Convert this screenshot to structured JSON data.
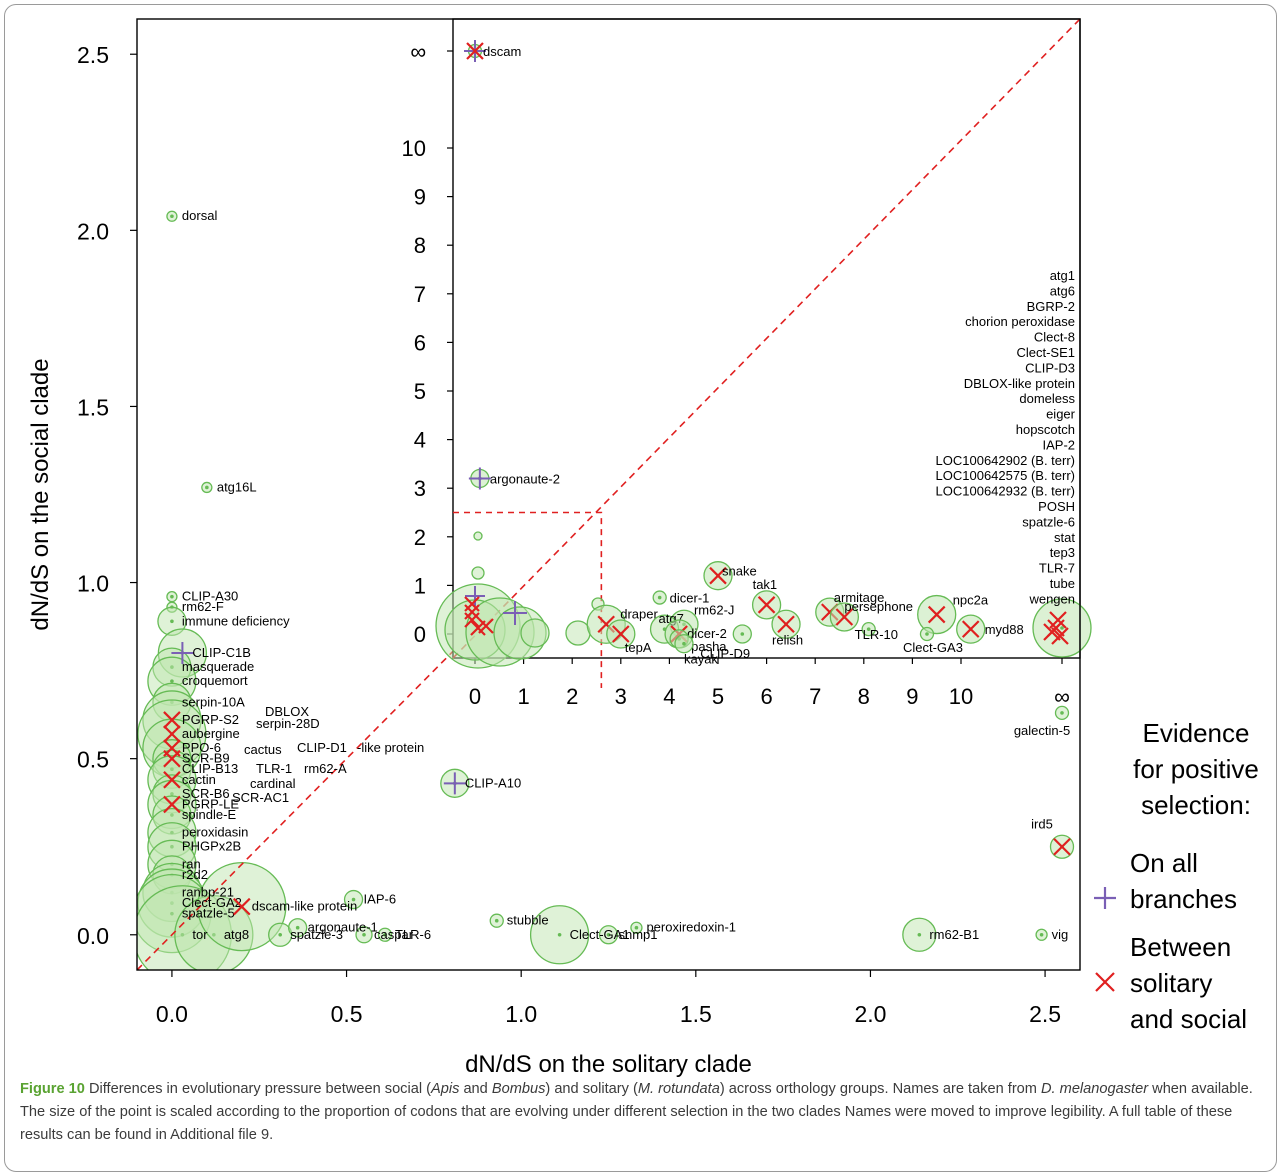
{
  "chart_data": {
    "type": "scatter",
    "xlabel": "dN/dS on the solitary clade",
    "ylabel": "dN/dS on the social clade",
    "xlim": [
      -0.1,
      2.6
    ],
    "ylim": [
      -0.1,
      2.6
    ],
    "xticks": [
      "0.0",
      "0.5",
      "1.0",
      "1.5",
      "2.0",
      "2.5"
    ],
    "yticks": [
      "0.0",
      "0.5",
      "1.0",
      "1.5",
      "2.0",
      "2.5"
    ],
    "diagonal": "y = x",
    "grid": false,
    "legend": {
      "title": [
        "Evidence",
        "for positive",
        "selection:"
      ],
      "entries": [
        {
          "label": [
            "On all",
            "branches"
          ],
          "marker": "+",
          "color": "#7a5fb5"
        },
        {
          "label": [
            "Between",
            "solitary",
            "and social"
          ],
          "marker": "x",
          "color": "#e02020"
        }
      ],
      "position": "right"
    },
    "colors": {
      "point": "#66bb55",
      "fill": "#bfe6b0",
      "plus": "#7a5fb5",
      "cross": "#e02020",
      "frame": "#000000"
    },
    "points": [
      {
        "x": 0.0,
        "y": 2.04,
        "label": "dorsal",
        "size": 0.02
      },
      {
        "x": 0.1,
        "y": 1.27,
        "label": "atg16L",
        "size": 0.02
      },
      {
        "x": 0.0,
        "y": 0.96,
        "label": "CLIP-A30",
        "size": 0.02
      },
      {
        "x": 0.0,
        "y": 0.93,
        "label": "rm62-F",
        "size": 0.02
      },
      {
        "x": 0.0,
        "y": 0.89,
        "label": "immune deficiency",
        "size": 0.2
      },
      {
        "x": 0.03,
        "y": 0.8,
        "label": "CLIP-C1B",
        "size": 0.4,
        "mark": "+"
      },
      {
        "x": 0.0,
        "y": 0.76,
        "label": "masquerade",
        "size": 0.3
      },
      {
        "x": 0.0,
        "y": 0.72,
        "label": "croquemort",
        "size": 0.4
      },
      {
        "x": 0.0,
        "y": 0.66,
        "label": "serpin-10A",
        "size": 0.3
      },
      {
        "x": 0.0,
        "y": 0.61,
        "label": "PGRP-S2",
        "size": 0.5,
        "mark": "x"
      },
      {
        "x": 0.0,
        "y": 0.57,
        "label": "aubergine",
        "size": 0.6,
        "mark": "x"
      },
      {
        "x": 0.0,
        "y": 0.53,
        "label": "PPO-6",
        "size": 0.5,
        "mark": "x"
      },
      {
        "x": 0.0,
        "y": 0.5,
        "label": "SCR-B9",
        "size": 0.3,
        "mark": "x"
      },
      {
        "x": 0.0,
        "y": 0.47,
        "label": "CLIP-B13",
        "size": 0.3
      },
      {
        "x": 0.0,
        "y": 0.44,
        "label": "cactin",
        "size": 0.4,
        "mark": "x"
      },
      {
        "x": 0.0,
        "y": 0.4,
        "label": "SCR-B6",
        "size": 0.3
      },
      {
        "x": 0.0,
        "y": 0.37,
        "label": "PGRP-LE",
        "size": 0.4,
        "mark": "x"
      },
      {
        "x": 0.0,
        "y": 0.34,
        "label": "spindle-E",
        "size": 0.3
      },
      {
        "x": 0.0,
        "y": 0.29,
        "label": "peroxidasin",
        "size": 0.4
      },
      {
        "x": 0.0,
        "y": 0.25,
        "label": "PHGPx2B",
        "size": 0.4
      },
      {
        "x": 0.0,
        "y": 0.2,
        "label": "ran",
        "size": 0.4
      },
      {
        "x": 0.0,
        "y": 0.17,
        "label": "r2d2",
        "size": 0.3
      },
      {
        "x": 0.0,
        "y": 0.12,
        "label": "ranbp-21",
        "size": 0.5
      },
      {
        "x": 0.0,
        "y": 0.09,
        "label": "Clect-GA2",
        "size": 0.6
      },
      {
        "x": 0.0,
        "y": 0.06,
        "label": "spatzle-5",
        "size": 0.7
      },
      {
        "x": 0.03,
        "y": 0.0,
        "label": "tor",
        "size": 0.9
      },
      {
        "x": 0.12,
        "y": 0.0,
        "label": "atg8",
        "size": 0.7
      },
      {
        "x": 0.2,
        "y": 0.08,
        "label": "dscam-like protein",
        "size": 0.8,
        "mark": "x"
      },
      {
        "x": 0.31,
        "y": 0.0,
        "label": "spatzle-3",
        "size": 0.15
      },
      {
        "x": 0.36,
        "y": 0.02,
        "label": "argonaute-1",
        "size": 0.1
      },
      {
        "x": 0.52,
        "y": 0.1,
        "label": "IAP-6",
        "size": 0.1
      },
      {
        "x": 0.55,
        "y": 0.0,
        "label": "caspar",
        "size": 0.08
      },
      {
        "x": 0.61,
        "y": 0.0,
        "label": "TLR-6",
        "size": 0.05
      },
      {
        "x": 0.81,
        "y": 0.43,
        "label": "CLIP-A10",
        "size": 0.2,
        "mark": "+"
      },
      {
        "x": 0.93,
        "y": 0.04,
        "label": "stubble",
        "size": 0.05
      },
      {
        "x": 1.11,
        "y": 0.0,
        "label": "Clect-GA1",
        "size": 0.5
      },
      {
        "x": 1.25,
        "y": 0.0,
        "label": "snmp1",
        "size": 0.1
      },
      {
        "x": 1.33,
        "y": 0.02,
        "label": "peroxiredoxin-1",
        "size": 0.03
      },
      {
        "x": 2.14,
        "y": 0.0,
        "label": "rm62-B1",
        "size": 0.25
      },
      {
        "x": 2.49,
        "y": 0.0,
        "label": "vig",
        "size": 0.03
      },
      {
        "x": "∞",
        "y": 0.63,
        "label": "galectin-5",
        "size": 0.05
      },
      {
        "x": "∞",
        "y": 0.25,
        "label": "ird5",
        "size": 0.15,
        "mark": "x"
      }
    ],
    "point_labels_plain": [
      {
        "text": "DBLOX",
        "near": "serpin-28D"
      },
      {
        "text": "serpin-28D"
      },
      {
        "text": "cactus"
      },
      {
        "text": "CLIP-D1"
      },
      {
        "text": "-like protein"
      },
      {
        "text": "TLR-1"
      },
      {
        "text": "rm62-A"
      },
      {
        "text": "cardinal"
      },
      {
        "text": "SCR-AC1"
      }
    ],
    "inset": {
      "xlim": [
        -0.1,
        11.0
      ],
      "ylim": [
        -0.5,
        12.0
      ],
      "xticks": [
        "0",
        "1",
        "2",
        "3",
        "4",
        "5",
        "6",
        "7",
        "8",
        "9",
        "10",
        "∞"
      ],
      "yticks": [
        "0",
        "1",
        "2",
        "3",
        "4",
        "5",
        "6",
        "7",
        "8",
        "9",
        "10",
        "∞"
      ],
      "zoom_box": [
        2.6,
        2.5
      ],
      "points": [
        {
          "x": 0.0,
          "y": "∞",
          "label": "dscam",
          "size": 0.05,
          "mark": "+x"
        },
        {
          "x": 0.1,
          "y": 3.2,
          "label": "argonaute-2",
          "size": 0.1,
          "mark": "+"
        },
        {
          "x": 5.0,
          "y": 1.2,
          "label": "snake",
          "size": 0.2,
          "mark": "x"
        },
        {
          "x": 6.0,
          "y": 0.6,
          "label": "tak1",
          "size": 0.2,
          "mark": "x"
        },
        {
          "x": 3.8,
          "y": 0.75,
          "label": "dicer-1",
          "size": 0.05
        },
        {
          "x": 2.7,
          "y": 0.2,
          "label": "draper",
          "size": 0.3,
          "mark": "x"
        },
        {
          "x": 4.3,
          "y": 0.2,
          "label": "rm62-J",
          "size": 0.2
        },
        {
          "x": 3.9,
          "y": 0.1,
          "label": "atg7",
          "size": 0.2
        },
        {
          "x": 4.2,
          "y": 0.0,
          "label": "dicer-2",
          "size": 0.2,
          "mark": "x"
        },
        {
          "x": 3.0,
          "y": 0.0,
          "label": "tepA",
          "size": 0.2,
          "mark": "x"
        },
        {
          "x": 4.2,
          "y": -0.1,
          "label": "pasha",
          "size": 0.1
        },
        {
          "x": 4.3,
          "y": -0.2,
          "label": "kayak",
          "size": 0.1
        },
        {
          "x": 5.5,
          "y": 0.0,
          "label": "CLIP-D9",
          "size": 0.1
        },
        {
          "x": 6.4,
          "y": 0.2,
          "label": "relish",
          "size": 0.2,
          "mark": "x"
        },
        {
          "x": 7.3,
          "y": 0.45,
          "label": "armitage",
          "size": 0.2,
          "mark": "x"
        },
        {
          "x": 7.6,
          "y": 0.35,
          "label": "persephone",
          "size": 0.2,
          "mark": "x"
        },
        {
          "x": 8.1,
          "y": 0.1,
          "label": "TLR-10",
          "size": 0.05
        },
        {
          "x": 9.5,
          "y": 0.4,
          "label": "npc2a",
          "size": 0.3,
          "mark": "x"
        },
        {
          "x": 9.3,
          "y": 0.0,
          "label": "Clect-GA3",
          "size": 0.05
        },
        {
          "x": 10.2,
          "y": 0.1,
          "label": "myd88",
          "size": 0.2,
          "mark": "x"
        }
      ],
      "infinity_column": [
        "atg1",
        "atg6",
        "BGRP-2",
        "chorion peroxidase",
        "Clect-8",
        "Clect-SE1",
        "CLIP-D3",
        "DBLOX-like protein",
        "domeless",
        "eiger",
        "hopscotch",
        "IAP-2",
        "LOC100642902 (B. terr)",
        "LOC100642575 (B. terr)",
        "LOC100642932 (B. terr)",
        "POSH",
        "spatzle-6",
        "stat",
        "tep3",
        "TLR-7",
        "tube",
        "wengen"
      ]
    }
  },
  "caption": {
    "lead": "Figure 10",
    "parts": [
      {
        "t": " Differences in evolutionary pressure between social (",
        "i": false
      },
      {
        "t": "Apis",
        "i": true
      },
      {
        "t": " and ",
        "i": false
      },
      {
        "t": "Bombus",
        "i": true
      },
      {
        "t": ") and solitary (",
        "i": false
      },
      {
        "t": "M. rotundata",
        "i": true
      },
      {
        "t": ") across orthology groups. Names are taken from ",
        "i": false
      },
      {
        "t": "D. melanogaster",
        "i": true
      },
      {
        "t": " when available. The size of the point is scaled according to the proportion of codons that are evolving under different selection in the two clades Names were moved to improve legibility. A full table of these results can be found in Additional file 9.",
        "i": false
      }
    ]
  }
}
